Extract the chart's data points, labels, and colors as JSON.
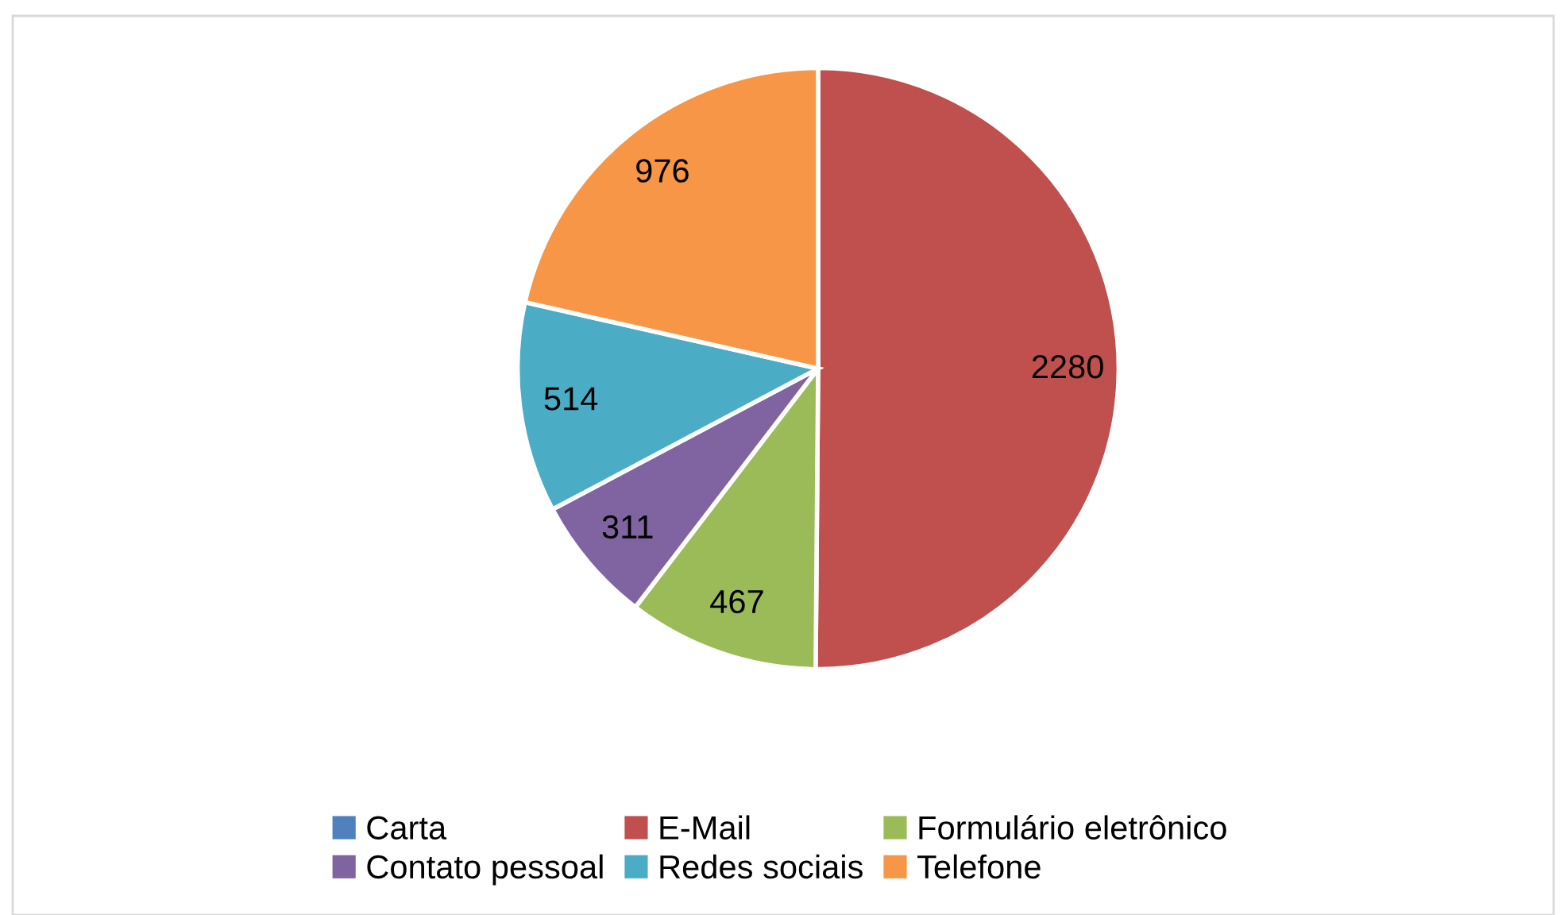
{
  "chart_data": {
    "type": "pie",
    "categories": [
      "Carta",
      "E-Mail",
      "Formulário eletrônico",
      "Contato pessoal",
      "Redes sociais",
      "Telefone"
    ],
    "values": [
      0,
      2280,
      467,
      311,
      514,
      976
    ],
    "value_labels": [
      null,
      "2280",
      "467",
      "311",
      "514",
      "976"
    ],
    "colors": [
      "#4f81bd",
      "#c0504d",
      "#9bbb59",
      "#8064a2",
      "#4bacc6",
      "#f79646"
    ],
    "legend": "bottom"
  }
}
